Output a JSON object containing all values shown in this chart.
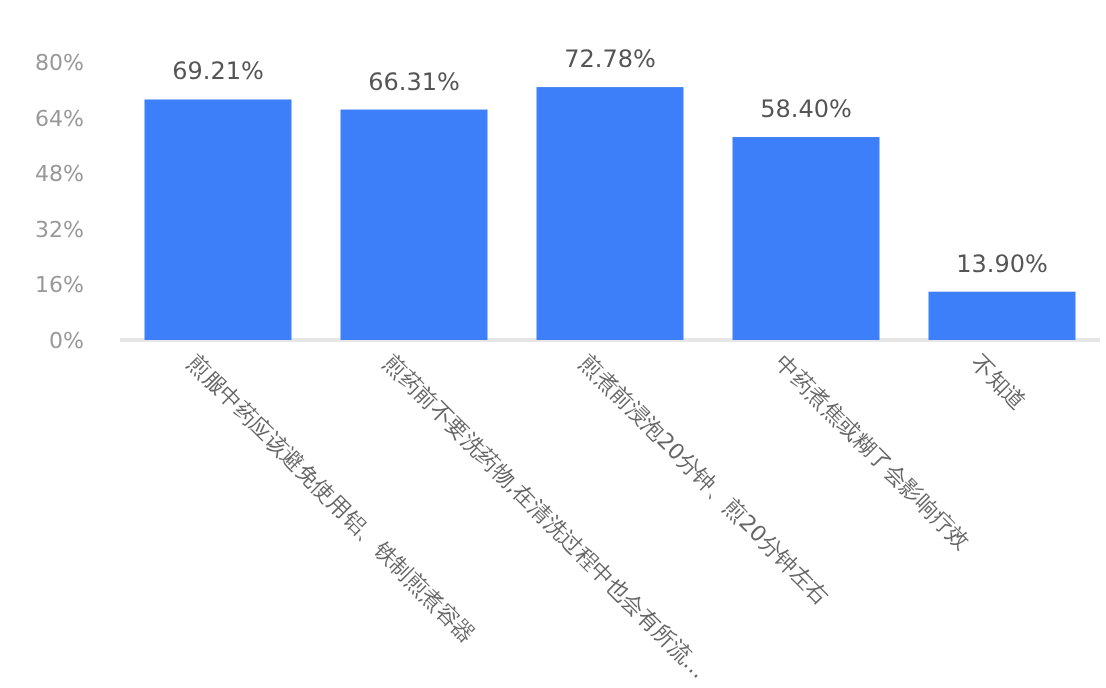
{
  "chart_data": {
    "type": "bar",
    "categories": [
      "煎服中药应该避免使用铝、铁制煎煮容器",
      "煎药前不要洗药物,在清洗过程中也会有所流...",
      "煎煮前浸泡20分钟、煎20分钟左右",
      "中药煮焦或糊了会影响疗效",
      "不知道"
    ],
    "values": [
      69.21,
      66.31,
      72.78,
      58.4,
      13.9
    ],
    "value_labels": [
      "69.21%",
      "66.31%",
      "72.78%",
      "58.40%",
      "13.90%"
    ],
    "color": "#3c7ff8",
    "ylim": [
      0,
      80
    ],
    "yticks": [
      {
        "value": 0,
        "label": "0%"
      },
      {
        "value": 16,
        "label": "16%"
      },
      {
        "value": 32,
        "label": "32%"
      },
      {
        "value": 48,
        "label": "48%"
      },
      {
        "value": 64,
        "label": "64%"
      },
      {
        "value": 80,
        "label": "80%"
      }
    ],
    "grid": false
  }
}
